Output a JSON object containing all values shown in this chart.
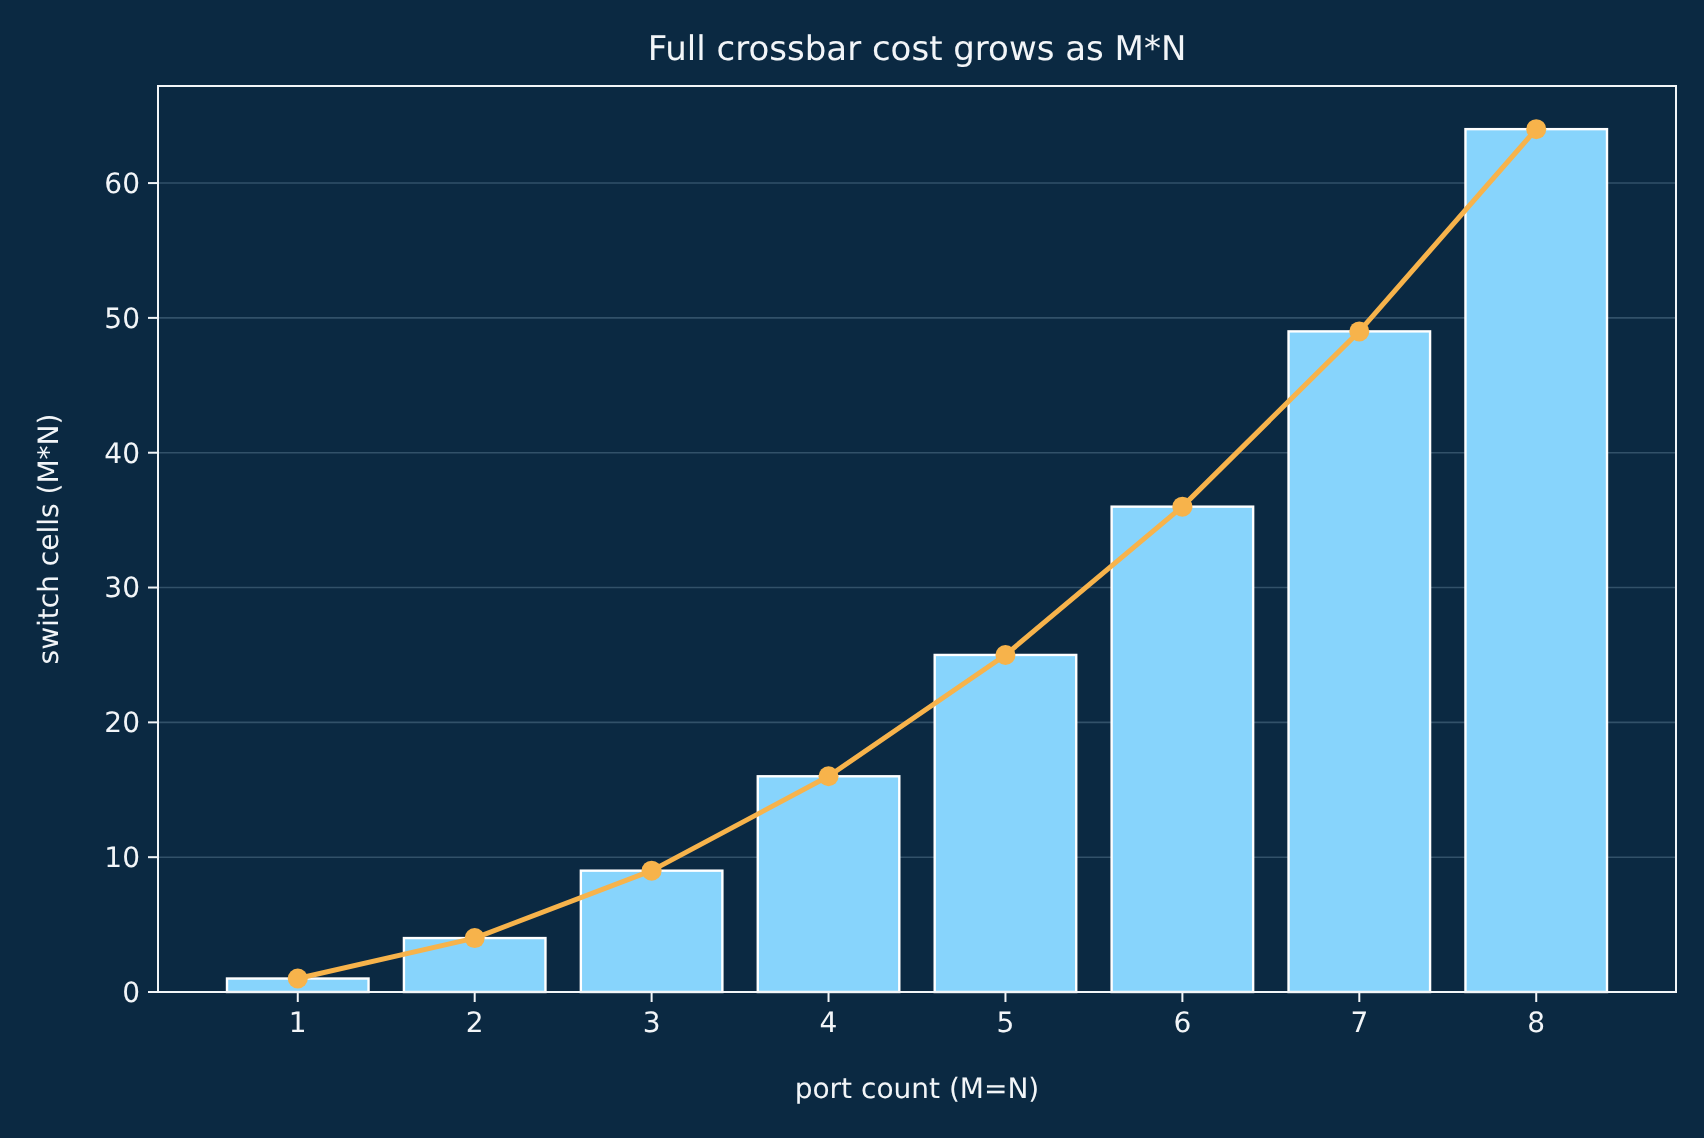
{
  "chart_data": {
    "type": "bar",
    "title": "Full crossbar cost grows as M*N",
    "xlabel": "port count (M=N)",
    "ylabel": "switch cells (M*N)",
    "x": [
      1,
      2,
      3,
      4,
      5,
      6,
      7,
      8
    ],
    "series": [
      {
        "color": "#87d4fc",
        "values": [
          1,
          4,
          9,
          16,
          25,
          36,
          49,
          64
        ]
      },
      {
        "type": "line",
        "color": "#f7b34b",
        "values": [
          1,
          4,
          9,
          16,
          25,
          36,
          49,
          64
        ],
        "marker": "circle"
      }
    ],
    "xlim": [
      0.21,
      8.79
    ],
    "xticks": [
      1,
      2,
      3,
      4,
      5,
      6,
      7,
      8
    ],
    "ylim": [
      0,
      67.2
    ],
    "yticks": [
      0,
      10,
      20,
      30,
      40,
      50,
      60
    ],
    "grid": "y"
  }
}
